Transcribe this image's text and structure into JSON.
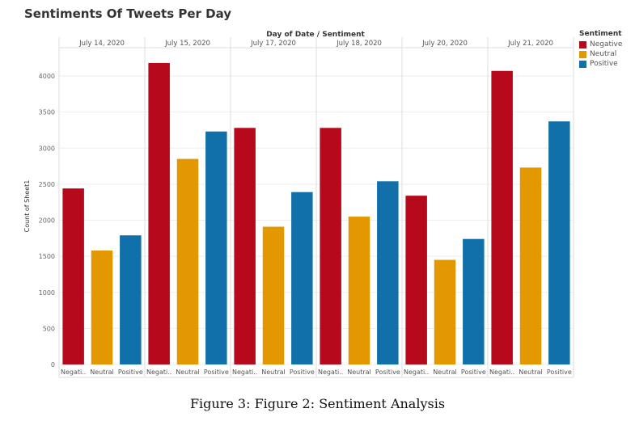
{
  "title": "Sentiments Of Tweets Per Day",
  "caption": "Figure 3: Figure 2: Sentiment Analysis",
  "legend": {
    "title": "Sentiment",
    "items": [
      {
        "label": "Negative",
        "color": "#b60a1c"
      },
      {
        "label": "Neutral",
        "color": "#e39802"
      },
      {
        "label": "Positive",
        "color": "#1170aa"
      }
    ]
  },
  "chart_data": {
    "type": "bar",
    "title": "Sentiments Of Tweets Per Day",
    "header_label": "Day of Date / Sentiment",
    "ylabel": "Count of Sheet1",
    "ylim": [
      0,
      4300
    ],
    "yticks": [
      0,
      500,
      1000,
      1500,
      2000,
      2500,
      3000,
      3500,
      4000
    ],
    "grid": true,
    "legend_position": "right",
    "groups": [
      "July 14, 2020",
      "July 15, 2020",
      "July 17, 2020",
      "July 18, 2020",
      "July 20, 2020",
      "July 21, 2020"
    ],
    "category_labels": [
      "Negati..",
      "Neutral",
      "Positive"
    ],
    "series": [
      {
        "name": "Negative",
        "color": "#b60a1c",
        "values": [
          2440,
          4180,
          3280,
          3280,
          2340,
          4070
        ]
      },
      {
        "name": "Neutral",
        "color": "#e39802",
        "values": [
          1580,
          2850,
          1910,
          2050,
          1450,
          2730
        ]
      },
      {
        "name": "Positive",
        "color": "#1170aa",
        "values": [
          1790,
          3230,
          2390,
          2540,
          1740,
          3370
        ]
      }
    ]
  }
}
